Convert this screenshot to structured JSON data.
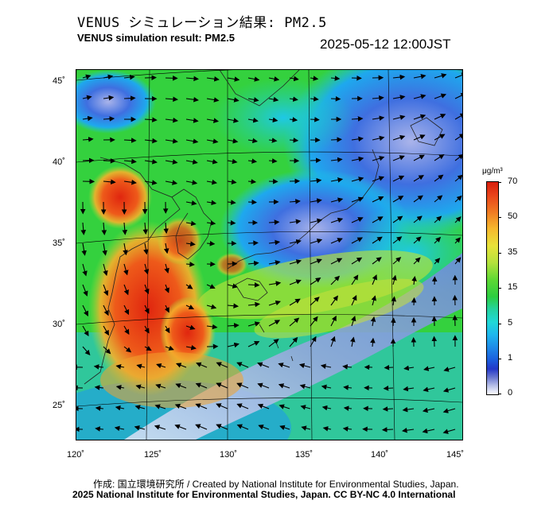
{
  "header": {
    "title_jp": "VENUS シミュレーション結果: PM2.5",
    "title_en": "VENUS simulation result: PM2.5",
    "timestamp": "2025-05-12 12:00JST"
  },
  "map": {
    "longitude_ticks": [
      "120˚",
      "125˚",
      "130˚",
      "135˚",
      "140˚",
      "145˚"
    ],
    "latitude_ticks": [
      "45˚",
      "40˚",
      "35˚",
      "30˚",
      "25˚"
    ],
    "lon_range": [
      120,
      145
    ],
    "lat_range": [
      23,
      46
    ],
    "variable": "PM2.5"
  },
  "colorbar": {
    "unit": "μg/m³",
    "ticks": [
      "70",
      "50",
      "35",
      "15",
      "5",
      "1",
      "0"
    ]
  },
  "footer": {
    "credit_line": "作成: 国立環境研究所 / Created by National Institute for Environmental Studies, Japan.",
    "copyright_line": "2025 National Institute for Environmental Studies, Japan. CC BY-NC 4.0 International"
  }
}
